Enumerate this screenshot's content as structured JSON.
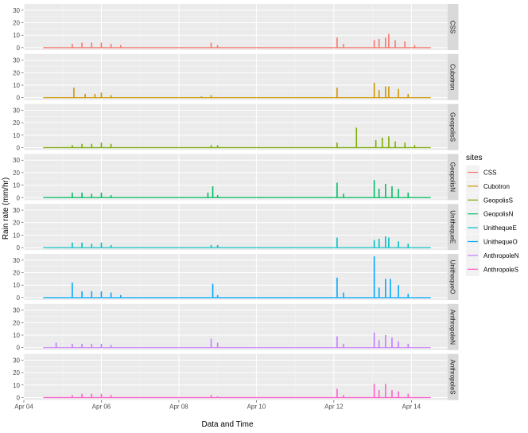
{
  "chart_data": {
    "type": "area",
    "xlabel": "Data and Time",
    "ylabel": "Rain rate (mm/hr)",
    "x_range": [
      "2024-04-04T00:00",
      "2024-04-14T22:00"
    ],
    "x_ticks": [
      {
        "date": "2024-04-04",
        "label": "Apr 04"
      },
      {
        "date": "2024-04-06",
        "label": "Apr 06"
      },
      {
        "date": "2024-04-08",
        "label": "Apr 08"
      },
      {
        "date": "2024-04-10",
        "label": "Apr 10"
      },
      {
        "date": "2024-04-12",
        "label": "Apr 12"
      },
      {
        "date": "2024-04-14",
        "label": "Apr 14"
      }
    ],
    "ylim": [
      -2,
      35
    ],
    "y_ticks": [
      0,
      10,
      20,
      30
    ],
    "grid": true,
    "facets": "rows",
    "legend": {
      "title": "sites",
      "position": "right"
    },
    "series": [
      {
        "name": "CSS",
        "color": "#F8766D",
        "points": [
          [
            "2024-04-05T06:00",
            3
          ],
          [
            "2024-04-05T12:00",
            4
          ],
          [
            "2024-04-05T18:00",
            4
          ],
          [
            "2024-04-06T00:00",
            4
          ],
          [
            "2024-04-06T06:00",
            3
          ],
          [
            "2024-04-06T12:00",
            2
          ],
          [
            "2024-04-08T20:00",
            4
          ],
          [
            "2024-04-09T00:00",
            2
          ],
          [
            "2024-04-12T02:00",
            8
          ],
          [
            "2024-04-12T06:00",
            3
          ],
          [
            "2024-04-13T01:00",
            6
          ],
          [
            "2024-04-13T04:00",
            7
          ],
          [
            "2024-04-13T08:00",
            8
          ],
          [
            "2024-04-13T10:00",
            11
          ],
          [
            "2024-04-13T14:00",
            6
          ],
          [
            "2024-04-13T20:00",
            5
          ],
          [
            "2024-04-14T02:00",
            2
          ]
        ]
      },
      {
        "name": "Cubotron",
        "color": "#CD9600",
        "points": [
          [
            "2024-04-05T07:00",
            8
          ],
          [
            "2024-04-05T14:00",
            3
          ],
          [
            "2024-04-05T20:00",
            3
          ],
          [
            "2024-04-06T00:00",
            4
          ],
          [
            "2024-04-06T06:00",
            2
          ],
          [
            "2024-04-08T14:00",
            1
          ],
          [
            "2024-04-08T20:00",
            2
          ],
          [
            "2024-04-12T02:00",
            8
          ],
          [
            "2024-04-13T01:00",
            12
          ],
          [
            "2024-04-13T04:00",
            6
          ],
          [
            "2024-04-13T08:00",
            9
          ],
          [
            "2024-04-13T10:00",
            9
          ],
          [
            "2024-04-13T16:00",
            7
          ],
          [
            "2024-04-13T22:00",
            3
          ]
        ]
      },
      {
        "name": "GeopolisS",
        "color": "#7CAE00",
        "points": [
          [
            "2024-04-05T06:00",
            2
          ],
          [
            "2024-04-05T12:00",
            3
          ],
          [
            "2024-04-05T18:00",
            3
          ],
          [
            "2024-04-06T00:00",
            4
          ],
          [
            "2024-04-06T06:00",
            3
          ],
          [
            "2024-04-08T20:00",
            2
          ],
          [
            "2024-04-09T00:00",
            2
          ],
          [
            "2024-04-12T02:00",
            4
          ],
          [
            "2024-04-12T14:00",
            16
          ],
          [
            "2024-04-13T02:00",
            6
          ],
          [
            "2024-04-13T06:00",
            8
          ],
          [
            "2024-04-13T10:00",
            9
          ],
          [
            "2024-04-13T14:00",
            5
          ],
          [
            "2024-04-13T20:00",
            4
          ],
          [
            "2024-04-14T02:00",
            2
          ]
        ]
      },
      {
        "name": "GeopolisN",
        "color": "#00BE67",
        "points": [
          [
            "2024-04-05T06:00",
            4
          ],
          [
            "2024-04-05T12:00",
            4
          ],
          [
            "2024-04-05T18:00",
            3
          ],
          [
            "2024-04-06T00:00",
            4
          ],
          [
            "2024-04-06T06:00",
            2
          ],
          [
            "2024-04-08T18:00",
            4
          ],
          [
            "2024-04-08T21:00",
            9
          ],
          [
            "2024-04-09T00:00",
            2
          ],
          [
            "2024-04-12T02:00",
            12
          ],
          [
            "2024-04-12T06:00",
            3
          ],
          [
            "2024-04-13T01:00",
            14
          ],
          [
            "2024-04-13T04:00",
            7
          ],
          [
            "2024-04-13T08:00",
            11
          ],
          [
            "2024-04-13T12:00",
            9
          ],
          [
            "2024-04-13T16:00",
            7
          ],
          [
            "2024-04-13T22:00",
            4
          ]
        ]
      },
      {
        "name": "UnithequeE",
        "color": "#00BFC4",
        "points": [
          [
            "2024-04-05T06:00",
            4
          ],
          [
            "2024-04-05T12:00",
            4
          ],
          [
            "2024-04-05T18:00",
            3
          ],
          [
            "2024-04-06T00:00",
            4
          ],
          [
            "2024-04-06T06:00",
            2
          ],
          [
            "2024-04-08T20:00",
            2
          ],
          [
            "2024-04-09T00:00",
            2
          ],
          [
            "2024-04-12T02:00",
            8
          ],
          [
            "2024-04-13T01:00",
            6
          ],
          [
            "2024-04-13T04:00",
            7
          ],
          [
            "2024-04-13T08:00",
            9
          ],
          [
            "2024-04-13T10:00",
            8
          ],
          [
            "2024-04-13T16:00",
            5
          ],
          [
            "2024-04-13T22:00",
            3
          ]
        ]
      },
      {
        "name": "UnithequeO",
        "color": "#00A9FF",
        "points": [
          [
            "2024-04-05T06:00",
            12
          ],
          [
            "2024-04-05T12:00",
            5
          ],
          [
            "2024-04-05T18:00",
            5
          ],
          [
            "2024-04-06T00:00",
            5
          ],
          [
            "2024-04-06T06:00",
            4
          ],
          [
            "2024-04-06T12:00",
            2
          ],
          [
            "2024-04-08T21:00",
            11
          ],
          [
            "2024-04-09T00:00",
            2
          ],
          [
            "2024-04-12T02:00",
            16
          ],
          [
            "2024-04-12T06:00",
            4
          ],
          [
            "2024-04-13T01:00",
            33
          ],
          [
            "2024-04-13T04:00",
            8
          ],
          [
            "2024-04-13T08:00",
            15
          ],
          [
            "2024-04-13T11:00",
            15
          ],
          [
            "2024-04-13T16:00",
            10
          ],
          [
            "2024-04-13T22:00",
            3
          ]
        ]
      },
      {
        "name": "AnthropoleN",
        "color": "#C77CFF",
        "points": [
          [
            "2024-04-04T20:00",
            4
          ],
          [
            "2024-04-05T06:00",
            3
          ],
          [
            "2024-04-05T12:00",
            3
          ],
          [
            "2024-04-05T18:00",
            3
          ],
          [
            "2024-04-06T00:00",
            3
          ],
          [
            "2024-04-06T06:00",
            2
          ],
          [
            "2024-04-08T20:00",
            7
          ],
          [
            "2024-04-09T00:00",
            4
          ],
          [
            "2024-04-12T02:00",
            9
          ],
          [
            "2024-04-12T06:00",
            3
          ],
          [
            "2024-04-13T01:00",
            12
          ],
          [
            "2024-04-13T04:00",
            6
          ],
          [
            "2024-04-13T08:00",
            10
          ],
          [
            "2024-04-13T12:00",
            8
          ],
          [
            "2024-04-13T16:00",
            5
          ],
          [
            "2024-04-13T22:00",
            3
          ]
        ]
      },
      {
        "name": "AnthropoleS",
        "color": "#FF61CC",
        "points": [
          [
            "2024-04-05T06:00",
            2
          ],
          [
            "2024-04-05T12:00",
            3
          ],
          [
            "2024-04-05T18:00",
            3
          ],
          [
            "2024-04-06T00:00",
            3
          ],
          [
            "2024-04-06T06:00",
            2
          ],
          [
            "2024-04-08T20:00",
            2
          ],
          [
            "2024-04-09T00:00",
            1
          ],
          [
            "2024-04-12T02:00",
            7
          ],
          [
            "2024-04-12T06:00",
            2
          ],
          [
            "2024-04-13T01:00",
            11
          ],
          [
            "2024-04-13T04:00",
            6
          ],
          [
            "2024-04-13T08:00",
            11
          ],
          [
            "2024-04-13T12:00",
            6
          ],
          [
            "2024-04-13T16:00",
            5
          ],
          [
            "2024-04-13T22:00",
            3
          ]
        ]
      }
    ]
  }
}
